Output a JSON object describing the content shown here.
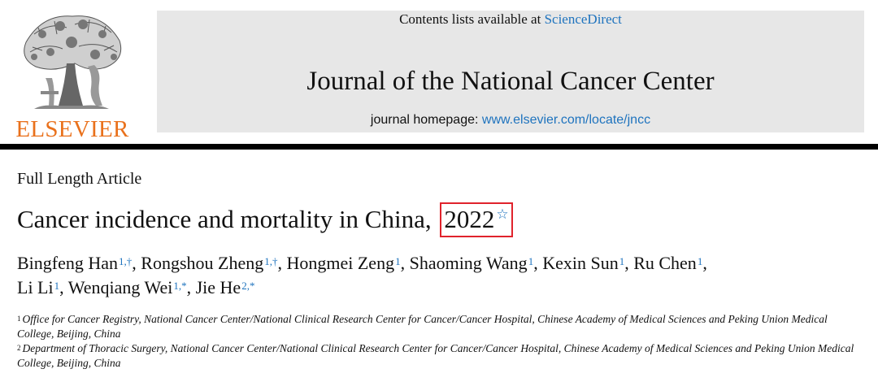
{
  "publisher": {
    "logo_text": "ELSEVIER"
  },
  "banner": {
    "contents_prefix": "Contents lists available at ",
    "contents_link": "ScienceDirect",
    "journal_title": "Journal of the National Cancer Center",
    "homepage_prefix": "journal homepage: ",
    "homepage_link": "www.elsevier.com/locate/jncc"
  },
  "article": {
    "type": "Full Length Article",
    "title_main": "Cancer incidence and mortality in China,",
    "title_year": "2022",
    "title_mark": "☆",
    "highlight_color": "#e0232c"
  },
  "authors": [
    {
      "name": "Bingfeng Han",
      "sup": "1,†",
      "sep": ", "
    },
    {
      "name": "Rongshou Zheng",
      "sup": "1,†",
      "sep": ", "
    },
    {
      "name": "Hongmei Zeng",
      "sup": "1",
      "sep": ", "
    },
    {
      "name": "Shaoming Wang",
      "sup": "1",
      "sep": ", "
    },
    {
      "name": "Kexin Sun",
      "sup": "1",
      "sep": ", "
    },
    {
      "name": "Ru Chen",
      "sup": "1",
      "sep": ", "
    },
    {
      "name": "Li Li",
      "sup": "1",
      "sep": ", "
    },
    {
      "name": "Wenqiang Wei",
      "sup": "1,*",
      "sep": ", "
    },
    {
      "name": "Jie He",
      "sup": "2,*",
      "sep": ""
    }
  ],
  "affiliations": [
    {
      "num": "1",
      "text": "Office for Cancer Registry, National Cancer Center/National Clinical Research Center for Cancer/Cancer Hospital, Chinese Academy of Medical Sciences and Peking Union Medical College, Beijing, China"
    },
    {
      "num": "2",
      "text": "Department of Thoracic Surgery, National Cancer Center/National Clinical Research Center for Cancer/Cancer Hospital, Chinese Academy of Medical Sciences and Peking Union Medical College, Beijing, China"
    }
  ],
  "colors": {
    "link": "#1e73be",
    "elsevier_orange": "#e9711c",
    "banner_bg": "#e7e7e7"
  },
  "icons": {
    "logo": "elsevier-tree-logo",
    "title_mark": "star-outline-icon"
  }
}
